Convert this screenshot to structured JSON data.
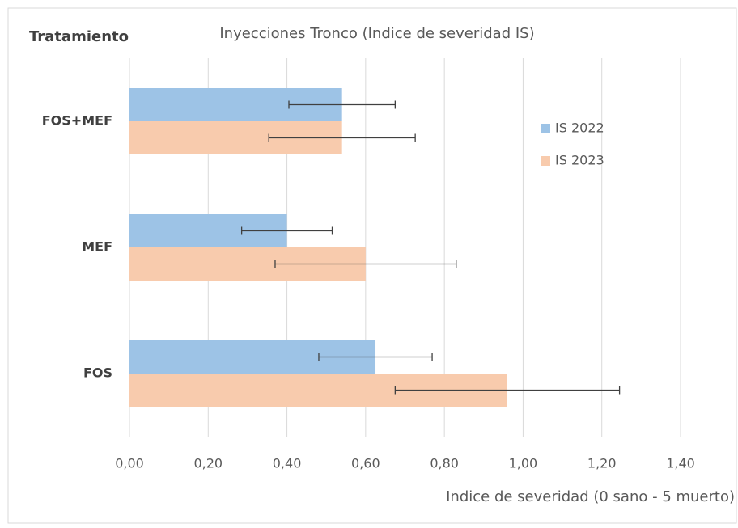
{
  "chart_data": {
    "type": "hbar",
    "title": "Inyecciones Tronco (Indice de severidad IS)",
    "y_label": "Tratamiento",
    "x_label": "Indice de severidad (0 sano - 5 muerto)",
    "categories": [
      "FOS+MEF",
      "MEF",
      "FOS"
    ],
    "series": [
      {
        "name": "IS 2022",
        "color": "#9dc3e6",
        "values": [
          0.54,
          0.4,
          0.625
        ],
        "errors": [
          0.135,
          0.115,
          0.144
        ]
      },
      {
        "name": "IS 2023",
        "color": "#f8cbad",
        "values": [
          0.54,
          0.6,
          0.96
        ],
        "errors": [
          0.186,
          0.23,
          0.285
        ]
      }
    ],
    "xlim": [
      0,
      1.4
    ],
    "xticks": [
      {
        "value": 0,
        "label": "0,00"
      },
      {
        "value": 0.2,
        "label": "0,20"
      },
      {
        "value": 0.4,
        "label": "0,40"
      },
      {
        "value": 0.6,
        "label": "0,60"
      },
      {
        "value": 0.8,
        "label": "0,80"
      },
      {
        "value": 1.0,
        "label": "1,00"
      },
      {
        "value": 1.2,
        "label": "1,20"
      },
      {
        "value": 1.4,
        "label": "1,40"
      }
    ],
    "grid": true,
    "error_color": "#404040",
    "legend": "right"
  }
}
